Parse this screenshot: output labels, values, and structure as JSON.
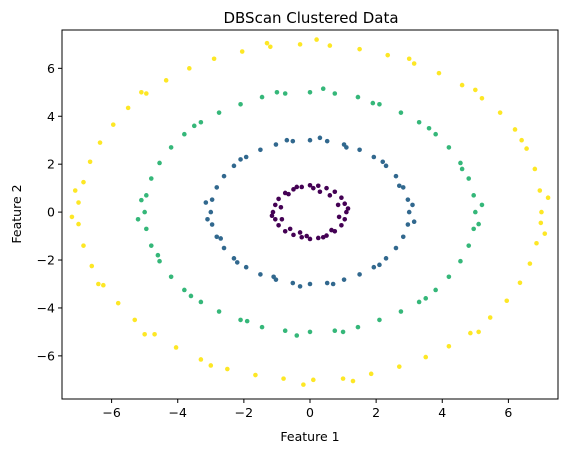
{
  "chart_data": {
    "type": "scatter",
    "title": "DBScan Clustered Data",
    "xlabel": "Feature 1",
    "ylabel": "Feature 2",
    "xlim": [
      -7.5,
      7.5
    ],
    "ylim": [
      -7.8,
      7.6
    ],
    "xticks": [
      -6,
      -4,
      -2,
      0,
      2,
      4,
      6
    ],
    "yticks": [
      -6,
      -4,
      -2,
      0,
      2,
      4,
      6
    ],
    "grid": false,
    "legend": "none",
    "series": [
      {
        "color": "#440154",
        "points": [
          [
            1.1,
            0.0
          ],
          [
            1.05,
            0.35
          ],
          [
            0.95,
            0.6
          ],
          [
            0.75,
            0.85
          ],
          [
            0.5,
            1.0
          ],
          [
            0.25,
            1.1
          ],
          [
            0.0,
            1.12
          ],
          [
            -0.25,
            1.05
          ],
          [
            -0.5,
            0.95
          ],
          [
            -0.75,
            0.8
          ],
          [
            -0.95,
            0.55
          ],
          [
            -1.05,
            0.3
          ],
          [
            -1.12,
            0.0
          ],
          [
            -1.05,
            -0.3
          ],
          [
            -0.95,
            -0.55
          ],
          [
            -0.75,
            -0.8
          ],
          [
            -0.5,
            -0.95
          ],
          [
            -0.25,
            -1.05
          ],
          [
            0.0,
            -1.12
          ],
          [
            0.25,
            -1.08
          ],
          [
            0.5,
            -0.98
          ],
          [
            0.75,
            -0.8
          ],
          [
            0.95,
            -0.55
          ],
          [
            1.05,
            -0.3
          ],
          [
            0.85,
            0.3
          ],
          [
            -0.85,
            -0.3
          ],
          [
            0.3,
            0.85
          ],
          [
            -0.3,
            -0.85
          ],
          [
            0.88,
            -0.2
          ],
          [
            -0.88,
            0.2
          ],
          [
            0.1,
            1.0
          ],
          [
            -0.1,
            -1.0
          ],
          [
            0.6,
            0.7
          ],
          [
            -0.6,
            -0.7
          ],
          [
            0.65,
            -0.75
          ],
          [
            -0.65,
            0.75
          ],
          [
            1.15,
            0.15
          ],
          [
            -1.15,
            -0.15
          ],
          [
            0.4,
            -1.05
          ],
          [
            -0.4,
            1.05
          ]
        ]
      },
      {
        "color": "#31688e",
        "points": [
          [
            3.0,
            0.0
          ],
          [
            2.96,
            0.52
          ],
          [
            2.82,
            1.03
          ],
          [
            2.6,
            1.5
          ],
          [
            2.3,
            1.93
          ],
          [
            1.93,
            2.3
          ],
          [
            1.5,
            2.6
          ],
          [
            1.03,
            2.82
          ],
          [
            0.52,
            2.96
          ],
          [
            0.0,
            3.0
          ],
          [
            -0.52,
            2.96
          ],
          [
            -1.03,
            2.82
          ],
          [
            -1.5,
            2.6
          ],
          [
            -1.93,
            2.3
          ],
          [
            -2.3,
            1.93
          ],
          [
            -2.6,
            1.5
          ],
          [
            -2.82,
            1.03
          ],
          [
            -2.96,
            0.52
          ],
          [
            -3.0,
            0.0
          ],
          [
            -2.96,
            -0.52
          ],
          [
            -2.82,
            -1.03
          ],
          [
            -2.6,
            -1.5
          ],
          [
            -2.3,
            -1.93
          ],
          [
            -1.93,
            -2.3
          ],
          [
            -1.5,
            -2.6
          ],
          [
            -1.03,
            -2.82
          ],
          [
            -0.52,
            -2.96
          ],
          [
            0.0,
            -3.0
          ],
          [
            0.52,
            -2.96
          ],
          [
            1.03,
            -2.82
          ],
          [
            1.5,
            -2.6
          ],
          [
            1.93,
            -2.3
          ],
          [
            2.3,
            -1.93
          ],
          [
            2.6,
            -1.5
          ],
          [
            2.82,
            -1.03
          ],
          [
            2.96,
            -0.52
          ],
          [
            3.1,
            0.3
          ],
          [
            -3.1,
            -0.3
          ],
          [
            0.3,
            3.1
          ],
          [
            -0.3,
            -3.1
          ],
          [
            2.7,
            1.1
          ],
          [
            -2.7,
            -1.1
          ],
          [
            1.1,
            2.7
          ],
          [
            -1.1,
            -2.7
          ],
          [
            2.2,
            2.1
          ],
          [
            -2.2,
            -2.1
          ],
          [
            2.1,
            -2.2
          ],
          [
            -2.1,
            2.2
          ],
          [
            3.15,
            -0.4
          ],
          [
            -3.15,
            0.4
          ],
          [
            0.7,
            -3.0
          ],
          [
            -0.7,
            3.0
          ]
        ]
      },
      {
        "color": "#35b779",
        "points": [
          [
            5.0,
            0.0
          ],
          [
            4.95,
            0.7
          ],
          [
            4.8,
            1.4
          ],
          [
            4.55,
            2.05
          ],
          [
            4.2,
            2.7
          ],
          [
            3.8,
            3.25
          ],
          [
            3.3,
            3.75
          ],
          [
            2.75,
            4.15
          ],
          [
            2.1,
            4.5
          ],
          [
            1.45,
            4.8
          ],
          [
            0.75,
            4.95
          ],
          [
            0.0,
            5.0
          ],
          [
            -0.75,
            4.95
          ],
          [
            -1.45,
            4.8
          ],
          [
            -2.1,
            4.5
          ],
          [
            -2.75,
            4.15
          ],
          [
            -3.3,
            3.75
          ],
          [
            -3.8,
            3.25
          ],
          [
            -4.2,
            2.7
          ],
          [
            -4.55,
            2.05
          ],
          [
            -4.8,
            1.4
          ],
          [
            -4.95,
            0.7
          ],
          [
            -5.0,
            0.0
          ],
          [
            -4.95,
            -0.7
          ],
          [
            -4.8,
            -1.4
          ],
          [
            -4.55,
            -2.05
          ],
          [
            -4.2,
            -2.7
          ],
          [
            -3.8,
            -3.25
          ],
          [
            -3.3,
            -3.75
          ],
          [
            -2.75,
            -4.15
          ],
          [
            -2.1,
            -4.5
          ],
          [
            -1.45,
            -4.8
          ],
          [
            -0.75,
            -4.95
          ],
          [
            0.0,
            -5.0
          ],
          [
            0.75,
            -4.95
          ],
          [
            1.45,
            -4.8
          ],
          [
            2.1,
            -4.5
          ],
          [
            2.75,
            -4.15
          ],
          [
            3.3,
            -3.75
          ],
          [
            3.8,
            -3.25
          ],
          [
            4.2,
            -2.7
          ],
          [
            4.55,
            -2.05
          ],
          [
            4.8,
            -1.4
          ],
          [
            4.95,
            -0.7
          ],
          [
            5.2,
            0.3
          ],
          [
            -5.2,
            -0.3
          ],
          [
            0.4,
            5.15
          ],
          [
            -0.4,
            -5.15
          ],
          [
            4.6,
            1.8
          ],
          [
            -4.6,
            -1.8
          ],
          [
            1.9,
            4.55
          ],
          [
            -1.9,
            -4.55
          ],
          [
            3.6,
            3.5
          ],
          [
            -3.6,
            -3.5
          ],
          [
            3.5,
            -3.6
          ],
          [
            -3.5,
            3.6
          ],
          [
            5.1,
            -0.5
          ],
          [
            -5.1,
            0.5
          ],
          [
            1.0,
            -5.0
          ],
          [
            -1.0,
            5.0
          ]
        ]
      },
      {
        "color": "#fde725",
        "points": [
          [
            7.0,
            0.0
          ],
          [
            6.95,
            0.9
          ],
          [
            6.8,
            1.8
          ],
          [
            6.55,
            2.65
          ],
          [
            6.2,
            3.45
          ],
          [
            5.75,
            4.15
          ],
          [
            5.2,
            4.75
          ],
          [
            4.6,
            5.3
          ],
          [
            3.9,
            5.8
          ],
          [
            3.15,
            6.2
          ],
          [
            2.35,
            6.55
          ],
          [
            1.5,
            6.8
          ],
          [
            0.6,
            6.95
          ],
          [
            -0.3,
            7.0
          ],
          [
            -1.2,
            6.9
          ],
          [
            -2.05,
            6.7
          ],
          [
            -2.9,
            6.4
          ],
          [
            -3.65,
            6.0
          ],
          [
            -4.35,
            5.5
          ],
          [
            -4.95,
            4.95
          ],
          [
            -5.5,
            4.35
          ],
          [
            -5.95,
            3.65
          ],
          [
            -6.35,
            2.9
          ],
          [
            -6.65,
            2.1
          ],
          [
            -6.85,
            1.25
          ],
          [
            -7.0,
            0.4
          ],
          [
            -7.0,
            -0.5
          ],
          [
            -6.85,
            -1.4
          ],
          [
            -6.6,
            -2.25
          ],
          [
            -6.25,
            -3.05
          ],
          [
            -5.8,
            -3.8
          ],
          [
            -5.3,
            -4.5
          ],
          [
            -4.7,
            -5.1
          ],
          [
            -4.05,
            -5.65
          ],
          [
            -3.3,
            -6.15
          ],
          [
            -2.5,
            -6.55
          ],
          [
            -1.65,
            -6.8
          ],
          [
            -0.8,
            -6.95
          ],
          [
            0.1,
            -7.0
          ],
          [
            1.0,
            -6.95
          ],
          [
            1.85,
            -6.75
          ],
          [
            2.7,
            -6.45
          ],
          [
            3.5,
            -6.05
          ],
          [
            4.2,
            -5.6
          ],
          [
            4.85,
            -5.05
          ],
          [
            5.45,
            -4.4
          ],
          [
            5.95,
            -3.7
          ],
          [
            6.35,
            -2.95
          ],
          [
            6.65,
            -2.15
          ],
          [
            6.85,
            -1.3
          ],
          [
            6.98,
            -0.45
          ],
          [
            7.2,
            0.6
          ],
          [
            -7.2,
            -0.2
          ],
          [
            0.2,
            7.2
          ],
          [
            -0.2,
            -7.2
          ],
          [
            6.4,
            3.0
          ],
          [
            -6.4,
            -3.0
          ],
          [
            3.0,
            6.4
          ],
          [
            -3.0,
            -6.4
          ],
          [
            5.0,
            5.1
          ],
          [
            -5.0,
            -5.1
          ],
          [
            5.1,
            -5.0
          ],
          [
            -5.1,
            5.0
          ],
          [
            7.1,
            -0.9
          ],
          [
            -7.1,
            0.9
          ],
          [
            1.3,
            -7.05
          ],
          [
            -1.3,
            7.05
          ]
        ]
      }
    ]
  }
}
